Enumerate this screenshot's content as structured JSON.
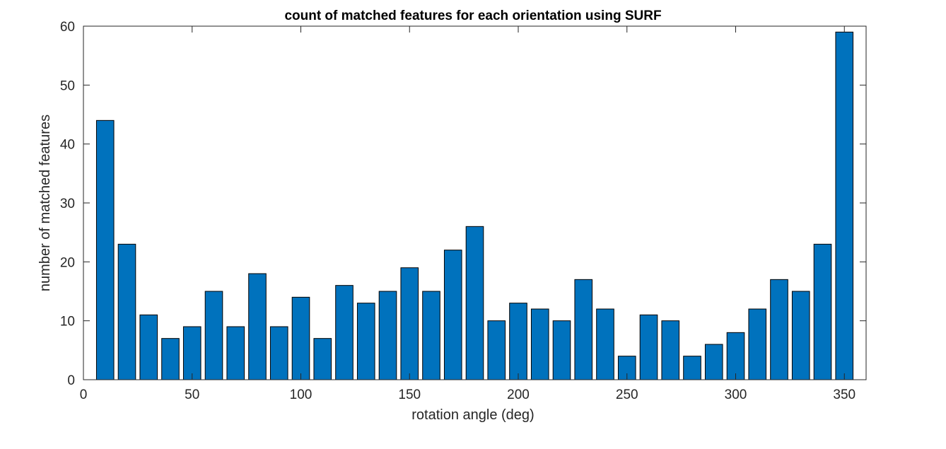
{
  "chart_data": {
    "type": "bar",
    "title": "count of matched features for each orientation using SURF",
    "xlabel": "rotation angle (deg)",
    "ylabel": "number of matched features",
    "x": [
      10,
      20,
      30,
      40,
      50,
      60,
      70,
      80,
      90,
      100,
      110,
      120,
      130,
      140,
      150,
      160,
      170,
      180,
      190,
      200,
      210,
      220,
      230,
      240,
      250,
      260,
      270,
      280,
      290,
      300,
      310,
      320,
      330,
      340,
      350
    ],
    "values": [
      44,
      23,
      11,
      7,
      9,
      15,
      9,
      18,
      9,
      14,
      7,
      16,
      13,
      15,
      19,
      15,
      22,
      26,
      10,
      13,
      12,
      10,
      17,
      12,
      4,
      11,
      10,
      4,
      6,
      8,
      12,
      17,
      15,
      23,
      59
    ],
    "xlim": [
      0,
      360
    ],
    "ylim": [
      0,
      60
    ],
    "xticks": [
      0,
      50,
      100,
      150,
      200,
      250,
      300,
      350
    ],
    "yticks": [
      0,
      10,
      20,
      30,
      40,
      50,
      60
    ],
    "bar_color": "#0072BD",
    "grid": false,
    "legend": "none"
  }
}
